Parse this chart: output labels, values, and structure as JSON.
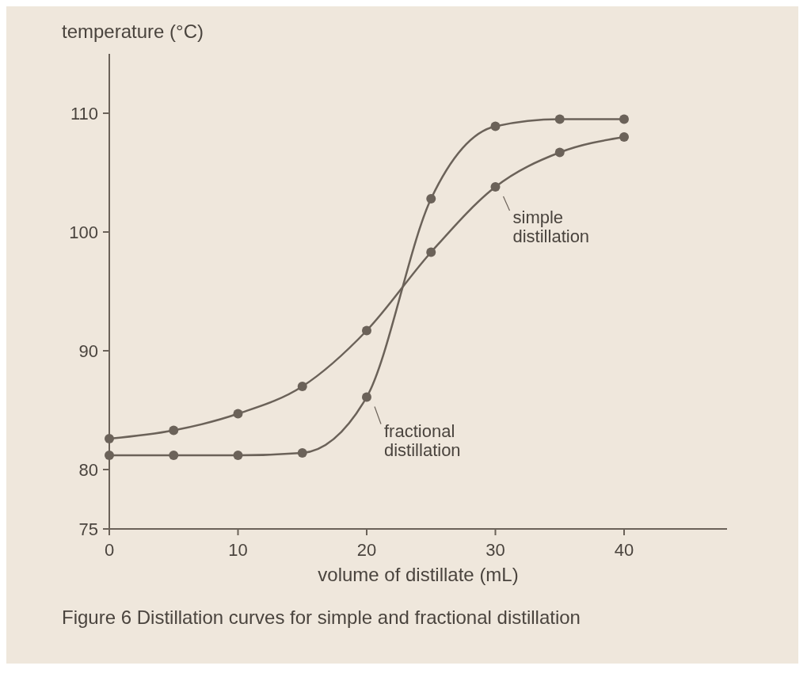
{
  "chart_data": {
    "type": "line",
    "xlabel": "volume of distillate (mL)",
    "ylabel": "temperature (°C)",
    "x": [
      0,
      5,
      10,
      15,
      20,
      25,
      30,
      35,
      40
    ],
    "series": [
      {
        "name": "simple distillation",
        "color": "#6b6259",
        "values": [
          82.6,
          83.3,
          84.7,
          87.0,
          91.7,
          98.3,
          103.8,
          106.7,
          108.0
        ]
      },
      {
        "name": "fractional distillation",
        "color": "#6b6259",
        "values": [
          81.2,
          81.2,
          81.2,
          81.4,
          86.1,
          102.8,
          108.9,
          109.5,
          109.5
        ]
      }
    ],
    "xlim": [
      0,
      48
    ],
    "xticks": [
      0,
      10,
      20,
      30,
      40
    ],
    "ylim": [
      75,
      115
    ],
    "yticks": [
      75,
      80,
      90,
      100,
      110
    ],
    "grid": false,
    "legend": "right",
    "marker": "circle",
    "line_style": "solid",
    "annotations": [
      "Figure 6  Distillation curves for simple and fractional distillation"
    ]
  }
}
